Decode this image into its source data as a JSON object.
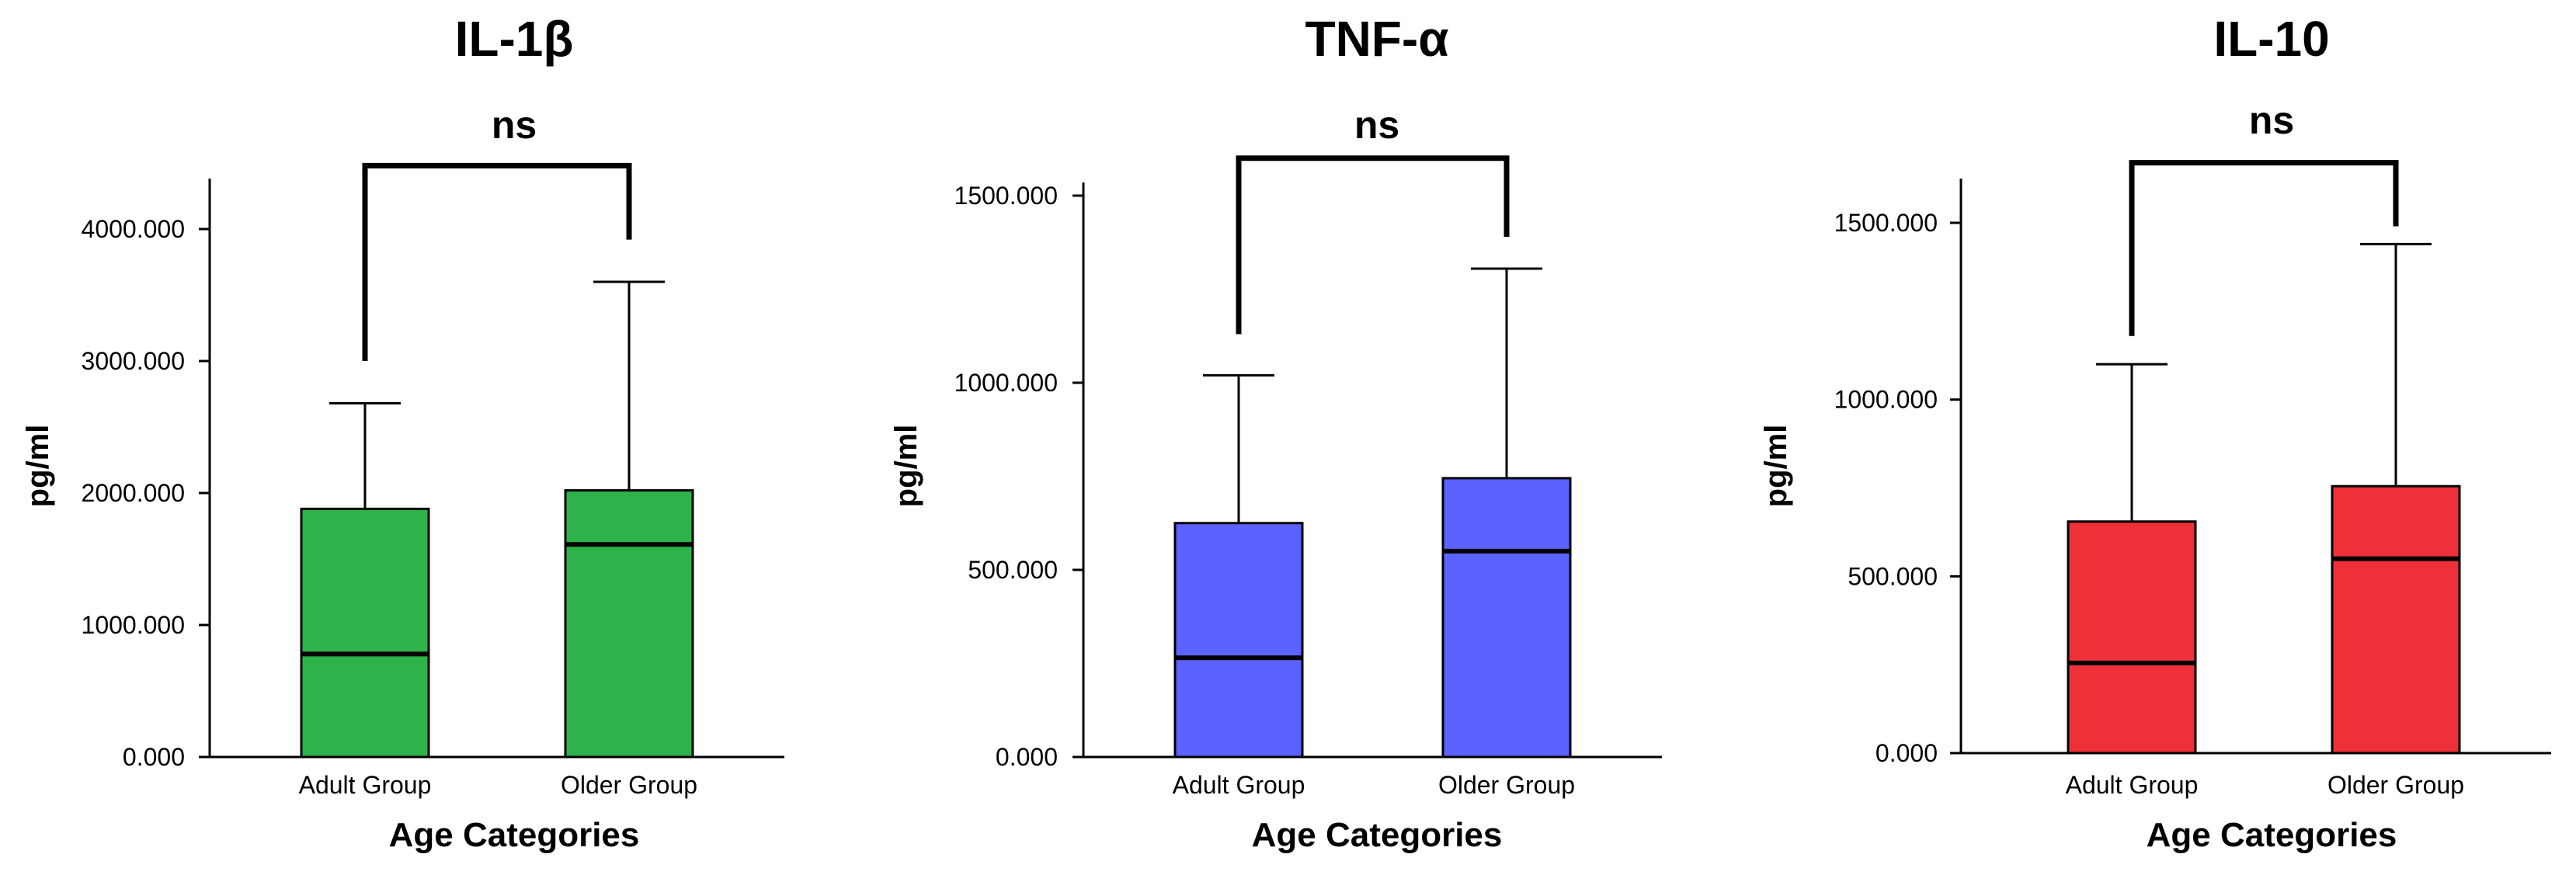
{
  "chart_data": [
    {
      "type": "box",
      "title": "IL-1β",
      "xlabel": "Age Categories",
      "ylabel": "pg/ml",
      "ylim": [
        0,
        4300
      ],
      "yticks": [
        0,
        1000,
        2000,
        3000,
        4000
      ],
      "yticklabels": [
        "0.000",
        "1000.000",
        "2000.000",
        "3000.000",
        "4000.000"
      ],
      "color": "#2db34a",
      "categories": [
        "Adult Group",
        "Older Group"
      ],
      "boxes": [
        {
          "q1": 0,
          "median": 780,
          "q3": 1880,
          "whisker_low": 0,
          "whisker_high": 2680
        },
        {
          "q1": 0,
          "median": 1610,
          "q3": 2020,
          "whisker_low": 0,
          "whisker_high": 3600
        }
      ],
      "annotation": {
        "text": "ns",
        "bracket_top": 4480,
        "left_drop": 3000,
        "right_drop": 3920
      }
    },
    {
      "type": "box",
      "title": "TNF-α",
      "xlabel": "Age Categories",
      "ylabel": "pg/ml",
      "ylim": [
        0,
        1550
      ],
      "yticks": [
        0,
        500,
        1000,
        1500
      ],
      "yticklabels": [
        "0.000",
        "500.000",
        "1000.000",
        "1500.000"
      ],
      "color": "#5c62ff",
      "categories": [
        "Adult Group",
        "Older Group"
      ],
      "boxes": [
        {
          "q1": 0,
          "median": 265,
          "q3": 625,
          "whisker_low": 0,
          "whisker_high": 1020
        },
        {
          "q1": 0,
          "median": 550,
          "q3": 745,
          "whisker_low": 0,
          "whisker_high": 1305
        }
      ],
      "annotation": {
        "text": "ns",
        "bracket_top": 1600,
        "left_drop": 1130,
        "right_drop": 1390
      }
    },
    {
      "type": "box",
      "title": "IL-10",
      "xlabel": "Age Categories",
      "ylabel": "pg/ml",
      "ylim": [
        0,
        1620
      ],
      "yticks": [
        0,
        500,
        1000,
        1500
      ],
      "yticklabels": [
        "0.000",
        "500.000",
        "1000.000",
        "1500.000"
      ],
      "color": "#ee3138",
      "categories": [
        "Adult Group",
        "Older Group"
      ],
      "boxes": [
        {
          "q1": 0,
          "median": 255,
          "q3": 655,
          "whisker_low": 0,
          "whisker_high": 1100
        },
        {
          "q1": 0,
          "median": 550,
          "q3": 755,
          "whisker_low": 0,
          "whisker_high": 1440
        }
      ],
      "annotation": {
        "text": "ns",
        "bracket_top": 1670,
        "left_drop": 1180,
        "right_drop": 1490
      }
    }
  ]
}
